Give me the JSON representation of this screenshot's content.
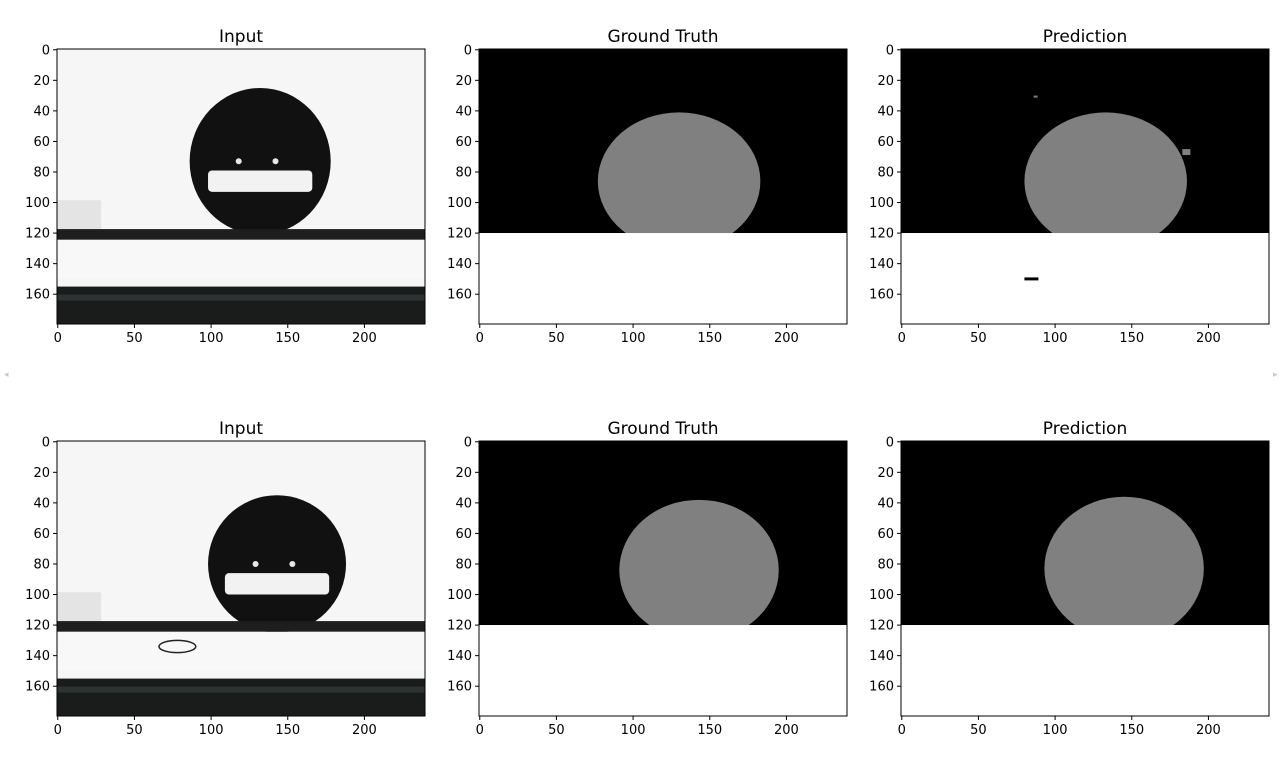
{
  "nav": {
    "prev_icon": "◂",
    "next_icon": "▸"
  },
  "figure": {
    "colors": {
      "black": "#000000",
      "gray": "#808080",
      "white": "#ffffff",
      "axes": "#000000"
    },
    "x_ticks": [
      "0",
      "50",
      "100",
      "150",
      "200"
    ],
    "x_tick_values": [
      0,
      50,
      100,
      150,
      200
    ],
    "y_ticks": [
      "0",
      "20",
      "40",
      "60",
      "80",
      "100",
      "120",
      "140",
      "160"
    ],
    "y_tick_values": [
      0,
      20,
      40,
      60,
      80,
      100,
      120,
      140,
      160
    ],
    "xlim": [
      -0.5,
      239.5
    ],
    "ylim": [
      179.5,
      -0.5
    ],
    "rows": [
      {
        "panels": [
          {
            "title": "Input",
            "kind": "input",
            "drop": {
              "cx": 132,
              "cy": 73,
              "rx": 46,
              "ry": 46,
              "bottom": 120
            },
            "surface_y": 120
          },
          {
            "title": "Ground Truth",
            "kind": "mask",
            "drop": {
              "cx": 130,
              "cy": 86,
              "rx": 53,
              "ry": 45
            },
            "surface_y": 120
          },
          {
            "title": "Prediction",
            "kind": "mask",
            "drop": {
              "cx": 133,
              "cy": 86,
              "rx": 53,
              "ry": 45
            },
            "surface_y": 120,
            "noise": true
          }
        ]
      },
      {
        "panels": [
          {
            "title": "Input",
            "kind": "input",
            "drop": {
              "cx": 143,
              "cy": 80,
              "rx": 45,
              "ry": 43,
              "bottom": 120
            },
            "surface_y": 120
          },
          {
            "title": "Ground Truth",
            "kind": "mask",
            "drop": {
              "cx": 143,
              "cy": 84,
              "rx": 52,
              "ry": 46
            },
            "surface_y": 120
          },
          {
            "title": "Prediction",
            "kind": "mask",
            "drop": {
              "cx": 145,
              "cy": 83,
              "rx": 52,
              "ry": 47
            },
            "surface_y": 120
          }
        ]
      }
    ]
  }
}
